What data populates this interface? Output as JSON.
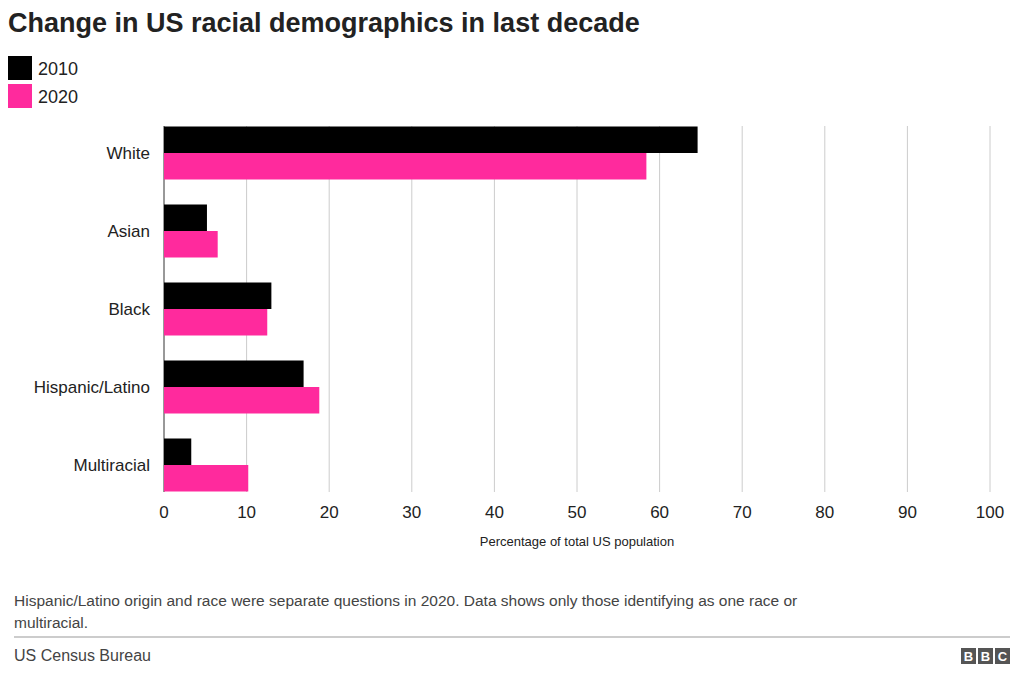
{
  "chart_data": {
    "type": "bar",
    "orientation": "horizontal",
    "title": "Change in US racial demographics in last decade",
    "categories": [
      "White",
      "Asian",
      "Black",
      "Hispanic/Latino",
      "Multiracial"
    ],
    "series": [
      {
        "name": "2010",
        "color": "#000000",
        "values": [
          64.6,
          5.2,
          13.0,
          16.9,
          3.3
        ]
      },
      {
        "name": "2020",
        "color": "#ff2a9d",
        "values": [
          58.4,
          6.5,
          12.5,
          18.8,
          10.2
        ]
      }
    ],
    "x_label": "Percentage of total US population",
    "xlim": [
      0,
      100
    ],
    "xticks": [
      0,
      10,
      20,
      30,
      40,
      50,
      60,
      70,
      80,
      90,
      100
    ],
    "grid": true,
    "legend": "top-left",
    "note": "Hispanic/Latino origin and race were separate questions in 2020. Data shows only those identifying as one race or multiracial.",
    "source": "US Census Bureau",
    "logo": "BBC"
  }
}
